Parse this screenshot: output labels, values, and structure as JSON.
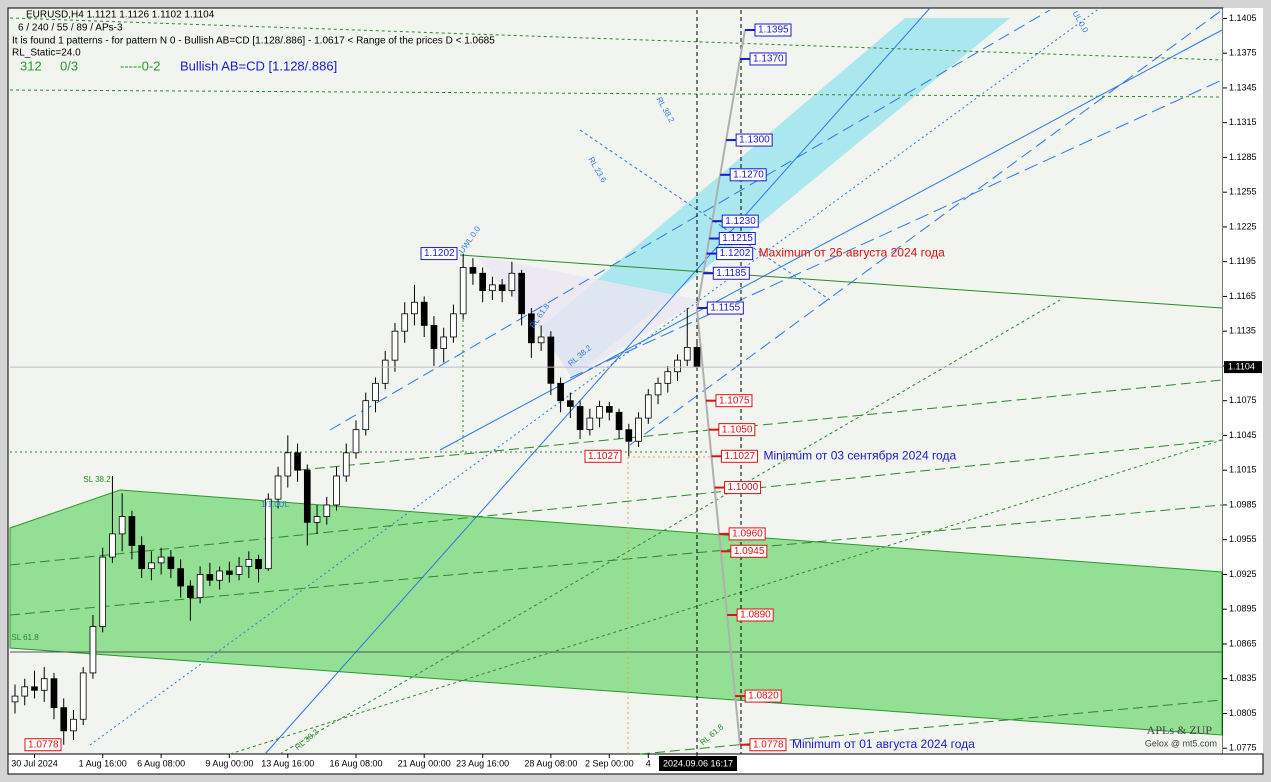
{
  "header": {
    "symbol_line": "EURUSD,H4  1.1121 1.1126 1.1102 1.1104",
    "params": "6 / 240 / 55 / 89 / APs-3",
    "pattern_info": "It is found 1 patterns  -  for pattern N 0 - Bullish AB=CD [1.128/.886] - 1.0617 < Range of the prices D < 1.0685",
    "rl_static": "RL_Static=24.0",
    "counter": "312",
    "ratio": "0/3",
    "code": "-----0-2",
    "pattern_name": "Bullish AB=CD [1.128/.886]"
  },
  "chart_data": {
    "type": "candlestick",
    "categories": [
      null,
      null,
      "30 Jul 2024",
      null,
      null,
      null,
      null,
      null,
      null,
      "1 Aug 16:00",
      null,
      null,
      null,
      null,
      null,
      "6 Aug 08:00",
      null,
      null,
      null,
      null,
      null,
      null,
      "9 Aug 00:00",
      null,
      null,
      null,
      null,
      null,
      "13 Aug 16:00",
      null,
      null,
      null,
      null,
      null,
      null,
      "16 Aug 08:00",
      null,
      null,
      null,
      null,
      null,
      null,
      "21 Aug 00:00",
      null,
      null,
      null,
      null,
      null,
      "23 Aug 16:00",
      null,
      null,
      null,
      null,
      null,
      null,
      "28 Aug 08:00",
      null,
      null,
      null,
      null,
      null,
      "2 Sep 00:00",
      null,
      null,
      null,
      "4",
      null,
      null,
      null,
      null,
      "2024.09.06 16:17"
    ],
    "ohlc": [
      [
        1.0815,
        1.083,
        1.0805,
        1.082
      ],
      [
        1.082,
        1.0835,
        1.0812,
        1.0828
      ],
      [
        1.0828,
        1.0842,
        1.0818,
        1.0825
      ],
      [
        1.0825,
        1.0845,
        1.0815,
        1.0835
      ],
      [
        1.0835,
        1.084,
        1.08,
        1.081
      ],
      [
        1.081,
        1.0818,
        1.0778,
        1.079
      ],
      [
        1.079,
        1.0808,
        1.0782,
        1.08
      ],
      [
        1.08,
        1.0845,
        1.0795,
        1.084
      ],
      [
        1.084,
        1.089,
        1.0835,
        1.088
      ],
      [
        1.088,
        1.0948,
        1.0875,
        1.094
      ],
      [
        1.094,
        1.101,
        1.0935,
        1.096
      ],
      [
        1.096,
        1.0995,
        1.0945,
        1.0975
      ],
      [
        1.0975,
        1.098,
        1.0938,
        1.095
      ],
      [
        1.095,
        1.0958,
        1.0922,
        1.093
      ],
      [
        1.093,
        1.0945,
        1.092,
        1.0935
      ],
      [
        1.0935,
        1.0948,
        1.0925,
        1.094
      ],
      [
        1.094,
        1.0946,
        1.0922,
        1.093
      ],
      [
        1.093,
        1.0938,
        1.0905,
        1.0915
      ],
      [
        1.0915,
        1.092,
        1.0885,
        1.0905
      ],
      [
        1.0905,
        1.0932,
        1.09,
        1.0925
      ],
      [
        1.0925,
        1.0935,
        1.0915,
        1.092
      ],
      [
        1.092,
        1.0932,
        1.0912,
        1.0928
      ],
      [
        1.0928,
        1.0936,
        1.0918,
        1.0925
      ],
      [
        1.0925,
        1.094,
        1.092,
        1.0932
      ],
      [
        1.0932,
        1.0945,
        1.0922,
        1.0938
      ],
      [
        1.0938,
        1.0942,
        1.0918,
        1.093
      ],
      [
        1.093,
        1.0995,
        1.0928,
        1.099
      ],
      [
        1.099,
        1.1018,
        1.0982,
        1.101
      ],
      [
        1.101,
        1.1045,
        1.1,
        1.103
      ],
      [
        1.103,
        1.1038,
        1.1005,
        1.1015
      ],
      [
        1.1015,
        1.102,
        1.095,
        1.097
      ],
      [
        1.097,
        1.0985,
        1.096,
        1.0975
      ],
      [
        1.0975,
        1.0992,
        1.0968,
        1.0985
      ],
      [
        1.0985,
        1.1018,
        1.098,
        1.101
      ],
      [
        1.101,
        1.1038,
        1.1005,
        1.103
      ],
      [
        1.103,
        1.1058,
        1.1025,
        1.105
      ],
      [
        1.105,
        1.1082,
        1.1045,
        1.1075
      ],
      [
        1.1075,
        1.1095,
        1.1065,
        1.109
      ],
      [
        1.109,
        1.1118,
        1.1085,
        1.111
      ],
      [
        1.111,
        1.1142,
        1.11,
        1.1135
      ],
      [
        1.1135,
        1.116,
        1.1125,
        1.115
      ],
      [
        1.115,
        1.1175,
        1.114,
        1.116
      ],
      [
        1.116,
        1.1165,
        1.113,
        1.114
      ],
      [
        1.114,
        1.1148,
        1.1105,
        1.112
      ],
      [
        1.112,
        1.1138,
        1.1108,
        1.113
      ],
      [
        1.113,
        1.1158,
        1.1125,
        1.115
      ],
      [
        1.115,
        1.1202,
        1.1145,
        1.119
      ],
      [
        1.119,
        1.1198,
        1.1175,
        1.1185
      ],
      [
        1.1185,
        1.119,
        1.116,
        1.117
      ],
      [
        1.117,
        1.1182,
        1.1162,
        1.1175
      ],
      [
        1.1175,
        1.118,
        1.116,
        1.117
      ],
      [
        1.117,
        1.1195,
        1.1165,
        1.1185
      ],
      [
        1.1185,
        1.1188,
        1.114,
        1.115
      ],
      [
        1.115,
        1.1155,
        1.1112,
        1.1125
      ],
      [
        1.1125,
        1.114,
        1.1118,
        1.113
      ],
      [
        1.113,
        1.1135,
        1.108,
        1.109
      ],
      [
        1.109,
        1.1095,
        1.1065,
        1.1075
      ],
      [
        1.1075,
        1.1082,
        1.106,
        1.107
      ],
      [
        1.107,
        1.1075,
        1.1042,
        1.105
      ],
      [
        1.105,
        1.1068,
        1.1045,
        1.106
      ],
      [
        1.106,
        1.1075,
        1.1052,
        1.107
      ],
      [
        1.107,
        1.1074,
        1.1058,
        1.1065
      ],
      [
        1.1065,
        1.1068,
        1.1042,
        1.105
      ],
      [
        1.105,
        1.1055,
        1.1027,
        1.104
      ],
      [
        1.104,
        1.1065,
        1.1035,
        1.106
      ],
      [
        1.106,
        1.1085,
        1.1055,
        1.108
      ],
      [
        1.108,
        1.1095,
        1.1072,
        1.109
      ],
      [
        1.109,
        1.1105,
        1.1082,
        1.11
      ],
      [
        1.11,
        1.1115,
        1.1092,
        1.111
      ],
      [
        1.111,
        1.1155,
        1.1105,
        1.1121
      ],
      [
        1.1121,
        1.1126,
        1.1102,
        1.1104
      ]
    ],
    "ylim": [
      1.077,
      1.1414
    ],
    "yticks": [
      1.0775,
      1.0805,
      1.0835,
      1.0865,
      1.0895,
      1.0925,
      1.0955,
      1.0985,
      1.1015,
      1.1045,
      1.1075,
      1.1105,
      1.1135,
      1.1165,
      1.1195,
      1.1225,
      1.1255,
      1.1285,
      1.1315,
      1.1345,
      1.1375,
      1.1405
    ],
    "current_price": 1.1104,
    "levels": {
      "values": [
        1.1395,
        1.137,
        1.13,
        1.127,
        1.123,
        1.1215,
        1.1202,
        1.1185,
        1.1155,
        1.1075,
        1.105,
        1.1027,
        1.1,
        1.096,
        1.0945,
        1.089,
        1.082,
        1.0778
      ],
      "value_labels": [
        "1.1395",
        "1.1370",
        "1.1300",
        "1.1270",
        "1.1230",
        "1.1215",
        "1.1202",
        "1.1185",
        "1.1155",
        "1.1075",
        "1.1050",
        "1.1027",
        "1.1000",
        "1.0960",
        "1.0945",
        "1.0890",
        "1.0820",
        "1.0778"
      ],
      "colors": [
        "#1a1acc",
        "#1a1acc",
        "#1a1acc",
        "#1a1acc",
        "#1a1acc",
        "#1a1acc",
        "#1a1acc",
        "#1a1acc",
        "#1a1acc",
        "#dd1111",
        "#dd1111",
        "#dd1111",
        "#dd1111",
        "#dd1111",
        "#dd1111",
        "#dd1111",
        "#dd1111",
        "#dd1111"
      ]
    },
    "left_labels": {
      "values": [
        1.1202,
        1.1027,
        1.0778
      ],
      "colors": [
        "#1a1acc",
        "#dd1111",
        "#dd1111"
      ]
    },
    "annotations": [
      {
        "text": "Maximum от 26 августа 2024 года",
        "color": "#dd1111"
      },
      {
        "text": "Minimum от 03 сентября 2024 года",
        "color": "#1a1acc"
      },
      {
        "text": "Minimum от 01 августа 2024 года",
        "color": "#1a1acc"
      }
    ],
    "line_labels": [
      "UWL 0.0",
      "RL 38.2",
      "RL 23.6",
      "RL 61.8",
      "RL 38.2",
      "SL 38.2",
      "SL 61.8",
      "RL 38.2",
      "RL 61.8",
      "UL 0.0",
      "1/1.0UL"
    ],
    "watermark": [
      "APLs & ZUP",
      "Gelox @ mt5.com"
    ]
  }
}
